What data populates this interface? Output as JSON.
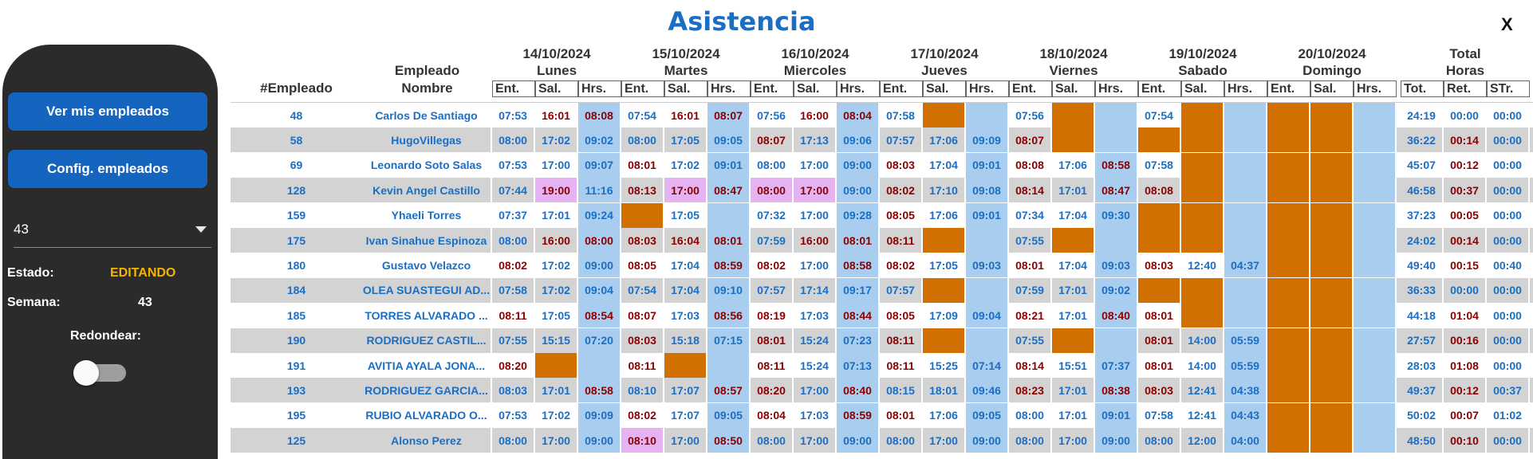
{
  "title": "Asistencia",
  "close_label": "X",
  "colors": {
    "accent": "#1565c0",
    "state": "#f4b400",
    "blue": "#1a6fc4",
    "red": "#8b0000",
    "orange": "#d17000",
    "lightblue": "#a9cdee",
    "pink": "#e6b3f2",
    "time_blue": "#1a6fc4",
    "time_red": "#8b0000"
  },
  "sidebar": {
    "btn_employees": "Ver mis empleados",
    "btn_config": "Config. empleados",
    "select_value": "43",
    "estado_label": "Estado:",
    "estado_value": "EDITANDO",
    "semana_label": "Semana:",
    "semana_value": "43",
    "redondear_label": "Redondear:",
    "redondear_on": false
  },
  "header": {
    "col_emp_num": "#Empleado",
    "col_emp_name_1": "Empleado",
    "col_emp_name_2": "Nombre",
    "days": [
      {
        "date": "14/10/2024",
        "day": "Lunes"
      },
      {
        "date": "15/10/2024",
        "day": "Martes"
      },
      {
        "date": "16/10/2024",
        "day": "Miercoles"
      },
      {
        "date": "17/10/2024",
        "day": "Jueves"
      },
      {
        "date": "18/10/2024",
        "day": "Viernes"
      },
      {
        "date": "19/10/2024",
        "day": "Sabado"
      },
      {
        "date": "20/10/2024",
        "day": "Domingo"
      }
    ],
    "sub_ent": "Ent.",
    "sub_sal": "Sal.",
    "sub_hrs": "Hrs.",
    "total_1": "Total",
    "total_2": "Horas",
    "sub_tot": "Tot.",
    "sub_ret": "Ret.",
    "sub_str": "STr."
  },
  "rows": [
    {
      "num": "48",
      "name": "Carlos De Santiago",
      "cells": [
        [
          "07:53",
          "b"
        ],
        [
          "16:01",
          "r"
        ],
        [
          "08:08",
          "r"
        ],
        [
          "07:54",
          "b"
        ],
        [
          "16:01",
          "r"
        ],
        [
          "08:07",
          "r"
        ],
        [
          "07:56",
          "b"
        ],
        [
          "16:00",
          "r"
        ],
        [
          "08:04",
          "r"
        ],
        [
          "07:58",
          "b"
        ],
        [
          "",
          "O"
        ],
        [
          "",
          "L"
        ],
        [
          "07:56",
          "b"
        ],
        [
          "",
          "O"
        ],
        [
          "",
          "L"
        ],
        [
          "07:54",
          "b"
        ],
        [
          "",
          "O"
        ],
        [
          "",
          "L"
        ],
        [
          "",
          "O"
        ],
        [
          "",
          "O"
        ],
        [
          "",
          "L"
        ]
      ],
      "tot": "24:19",
      "ret": "00:00",
      "str": "00:00"
    },
    {
      "num": "58",
      "name": "HugoVillegas",
      "cells": [
        [
          "08:00",
          "b"
        ],
        [
          "17:02",
          "b"
        ],
        [
          "09:02",
          "b"
        ],
        [
          "08:00",
          "b"
        ],
        [
          "17:05",
          "b"
        ],
        [
          "09:05",
          "b"
        ],
        [
          "08:07",
          "r"
        ],
        [
          "17:13",
          "b"
        ],
        [
          "09:06",
          "b"
        ],
        [
          "07:57",
          "b"
        ],
        [
          "17:06",
          "b"
        ],
        [
          "09:09",
          "b"
        ],
        [
          "08:07",
          "r"
        ],
        [
          "",
          "O"
        ],
        [
          "",
          "L"
        ],
        [
          "",
          "O"
        ],
        [
          "",
          "O"
        ],
        [
          "",
          "L"
        ],
        [
          "",
          "O"
        ],
        [
          "",
          "O"
        ],
        [
          "",
          "L"
        ]
      ],
      "tot": "36:22",
      "ret": "00:14",
      "str": "00:00"
    },
    {
      "num": "69",
      "name": "Leonardo Soto Salas",
      "cells": [
        [
          "07:53",
          "b"
        ],
        [
          "17:00",
          "b"
        ],
        [
          "09:07",
          "b"
        ],
        [
          "08:01",
          "r"
        ],
        [
          "17:02",
          "b"
        ],
        [
          "09:01",
          "b"
        ],
        [
          "08:00",
          "b"
        ],
        [
          "17:00",
          "b"
        ],
        [
          "09:00",
          "b"
        ],
        [
          "08:03",
          "r"
        ],
        [
          "17:04",
          "b"
        ],
        [
          "09:01",
          "b"
        ],
        [
          "08:08",
          "r"
        ],
        [
          "17:06",
          "b"
        ],
        [
          "08:58",
          "r"
        ],
        [
          "07:58",
          "b"
        ],
        [
          "",
          "O"
        ],
        [
          "",
          "L"
        ],
        [
          "",
          "O"
        ],
        [
          "",
          "O"
        ],
        [
          "",
          "L"
        ]
      ],
      "tot": "45:07",
      "ret": "00:12",
      "str": "00:00"
    },
    {
      "num": "128",
      "name": "Kevin Angel Castillo",
      "cells": [
        [
          "07:44",
          "b"
        ],
        [
          "19:00",
          "p"
        ],
        [
          "11:16",
          "b"
        ],
        [
          "08:13",
          "r"
        ],
        [
          "17:00",
          "p"
        ],
        [
          "08:47",
          "r"
        ],
        [
          "08:00",
          "p"
        ],
        [
          "17:00",
          "p"
        ],
        [
          "09:00",
          "b"
        ],
        [
          "08:02",
          "r"
        ],
        [
          "17:10",
          "b"
        ],
        [
          "09:08",
          "b"
        ],
        [
          "08:14",
          "r"
        ],
        [
          "17:01",
          "b"
        ],
        [
          "08:47",
          "r"
        ],
        [
          "08:08",
          "r"
        ],
        [
          "",
          "O"
        ],
        [
          "",
          "L"
        ],
        [
          "",
          "O"
        ],
        [
          "",
          "O"
        ],
        [
          "",
          "L"
        ]
      ],
      "tot": "46:58",
      "ret": "00:37",
      "str": "00:00"
    },
    {
      "num": "159",
      "name": "Yhaeli Torres",
      "cells": [
        [
          "07:37",
          "b"
        ],
        [
          "17:01",
          "b"
        ],
        [
          "09:24",
          "b"
        ],
        [
          "",
          "O"
        ],
        [
          "17:05",
          "b"
        ],
        [
          "",
          "L"
        ],
        [
          "07:32",
          "b"
        ],
        [
          "17:00",
          "b"
        ],
        [
          "09:28",
          "b"
        ],
        [
          "08:05",
          "r"
        ],
        [
          "17:06",
          "b"
        ],
        [
          "09:01",
          "b"
        ],
        [
          "07:34",
          "b"
        ],
        [
          "17:04",
          "b"
        ],
        [
          "09:30",
          "b"
        ],
        [
          "",
          "O"
        ],
        [
          "",
          "O"
        ],
        [
          "",
          "L"
        ],
        [
          "",
          "O"
        ],
        [
          "",
          "O"
        ],
        [
          "",
          "L"
        ]
      ],
      "tot": "37:23",
      "ret": "00:05",
      "str": "00:00"
    },
    {
      "num": "175",
      "name": "Ivan Sinahue Espinoza",
      "cells": [
        [
          "08:00",
          "b"
        ],
        [
          "16:00",
          "r"
        ],
        [
          "08:00",
          "r"
        ],
        [
          "08:03",
          "r"
        ],
        [
          "16:04",
          "r"
        ],
        [
          "08:01",
          "r"
        ],
        [
          "07:59",
          "b"
        ],
        [
          "16:00",
          "r"
        ],
        [
          "08:01",
          "r"
        ],
        [
          "08:11",
          "r"
        ],
        [
          "",
          "O"
        ],
        [
          "",
          "L"
        ],
        [
          "07:55",
          "b"
        ],
        [
          "",
          "O"
        ],
        [
          "",
          "L"
        ],
        [
          "",
          "O"
        ],
        [
          "",
          "O"
        ],
        [
          "",
          "L"
        ],
        [
          "",
          "O"
        ],
        [
          "",
          "O"
        ],
        [
          "",
          "L"
        ]
      ],
      "tot": "24:02",
      "ret": "00:14",
      "str": "00:00"
    },
    {
      "num": "180",
      "name": "Gustavo Velazco",
      "cells": [
        [
          "08:02",
          "r"
        ],
        [
          "17:02",
          "b"
        ],
        [
          "09:00",
          "b"
        ],
        [
          "08:05",
          "r"
        ],
        [
          "17:04",
          "b"
        ],
        [
          "08:59",
          "r"
        ],
        [
          "08:02",
          "r"
        ],
        [
          "17:00",
          "b"
        ],
        [
          "08:58",
          "r"
        ],
        [
          "08:02",
          "r"
        ],
        [
          "17:05",
          "b"
        ],
        [
          "09:03",
          "b"
        ],
        [
          "08:01",
          "r"
        ],
        [
          "17:04",
          "b"
        ],
        [
          "09:03",
          "b"
        ],
        [
          "08:03",
          "r"
        ],
        [
          "12:40",
          "b"
        ],
        [
          "04:37",
          "b"
        ],
        [
          "",
          "O"
        ],
        [
          "",
          "O"
        ],
        [
          "",
          "L"
        ]
      ],
      "tot": "49:40",
      "ret": "00:15",
      "str": "00:40"
    },
    {
      "num": "184",
      "name": "OLEA SUASTEGUI AD...",
      "cells": [
        [
          "07:58",
          "b"
        ],
        [
          "17:02",
          "b"
        ],
        [
          "09:04",
          "b"
        ],
        [
          "07:54",
          "b"
        ],
        [
          "17:04",
          "b"
        ],
        [
          "09:10",
          "b"
        ],
        [
          "07:57",
          "b"
        ],
        [
          "17:14",
          "b"
        ],
        [
          "09:17",
          "b"
        ],
        [
          "07:57",
          "b"
        ],
        [
          "",
          "O"
        ],
        [
          "",
          "L"
        ],
        [
          "07:59",
          "b"
        ],
        [
          "17:01",
          "b"
        ],
        [
          "09:02",
          "b"
        ],
        [
          "",
          "O"
        ],
        [
          "",
          "O"
        ],
        [
          "",
          "L"
        ],
        [
          "",
          "O"
        ],
        [
          "",
          "O"
        ],
        [
          "",
          "L"
        ]
      ],
      "tot": "36:33",
      "ret": "00:00",
      "str": "00:00"
    },
    {
      "num": "185",
      "name": "TORRES ALVARADO ...",
      "cells": [
        [
          "08:11",
          "r"
        ],
        [
          "17:05",
          "b"
        ],
        [
          "08:54",
          "r"
        ],
        [
          "08:07",
          "r"
        ],
        [
          "17:03",
          "b"
        ],
        [
          "08:56",
          "r"
        ],
        [
          "08:19",
          "r"
        ],
        [
          "17:03",
          "b"
        ],
        [
          "08:44",
          "r"
        ],
        [
          "08:05",
          "r"
        ],
        [
          "17:09",
          "b"
        ],
        [
          "09:04",
          "b"
        ],
        [
          "08:21",
          "r"
        ],
        [
          "17:01",
          "b"
        ],
        [
          "08:40",
          "r"
        ],
        [
          "08:01",
          "r"
        ],
        [
          "",
          "O"
        ],
        [
          "",
          "L"
        ],
        [
          "",
          "O"
        ],
        [
          "",
          "O"
        ],
        [
          "",
          "L"
        ]
      ],
      "tot": "44:18",
      "ret": "01:04",
      "str": "00:00"
    },
    {
      "num": "190",
      "name": "RODRIGUEZ CASTIL...",
      "cells": [
        [
          "07:55",
          "b"
        ],
        [
          "15:15",
          "b"
        ],
        [
          "07:20",
          "b"
        ],
        [
          "08:03",
          "r"
        ],
        [
          "15:18",
          "b"
        ],
        [
          "07:15",
          "b"
        ],
        [
          "08:01",
          "r"
        ],
        [
          "15:24",
          "b"
        ],
        [
          "07:23",
          "b"
        ],
        [
          "08:11",
          "r"
        ],
        [
          "",
          "O"
        ],
        [
          "",
          "L"
        ],
        [
          "07:55",
          "b"
        ],
        [
          "",
          "O"
        ],
        [
          "",
          "L"
        ],
        [
          "08:01",
          "r"
        ],
        [
          "14:00",
          "b"
        ],
        [
          "05:59",
          "b"
        ],
        [
          "",
          "O"
        ],
        [
          "",
          "O"
        ],
        [
          "",
          "L"
        ]
      ],
      "tot": "27:57",
      "ret": "00:16",
      "str": "00:00"
    },
    {
      "num": "191",
      "name": "AVITIA AYALA JONA...",
      "cells": [
        [
          "08:20",
          "r"
        ],
        [
          "",
          "O"
        ],
        [
          "",
          "L"
        ],
        [
          "08:11",
          "r"
        ],
        [
          "",
          "O"
        ],
        [
          "",
          "L"
        ],
        [
          "08:11",
          "r"
        ],
        [
          "15:24",
          "b"
        ],
        [
          "07:13",
          "b"
        ],
        [
          "08:11",
          "r"
        ],
        [
          "15:25",
          "b"
        ],
        [
          "07:14",
          "b"
        ],
        [
          "08:14",
          "r"
        ],
        [
          "15:51",
          "b"
        ],
        [
          "07:37",
          "b"
        ],
        [
          "08:01",
          "r"
        ],
        [
          "14:00",
          "b"
        ],
        [
          "05:59",
          "b"
        ],
        [
          "",
          "O"
        ],
        [
          "",
          "O"
        ],
        [
          "",
          "L"
        ]
      ],
      "tot": "28:03",
      "ret": "01:08",
      "str": "00:00"
    },
    {
      "num": "193",
      "name": "RODRIGUEZ GARCIA...",
      "cells": [
        [
          "08:03",
          "b"
        ],
        [
          "17:01",
          "b"
        ],
        [
          "08:58",
          "r"
        ],
        [
          "08:10",
          "b"
        ],
        [
          "17:07",
          "b"
        ],
        [
          "08:57",
          "r"
        ],
        [
          "08:20",
          "r"
        ],
        [
          "17:00",
          "b"
        ],
        [
          "08:40",
          "r"
        ],
        [
          "08:15",
          "b"
        ],
        [
          "18:01",
          "b"
        ],
        [
          "09:46",
          "b"
        ],
        [
          "08:23",
          "r"
        ],
        [
          "17:01",
          "b"
        ],
        [
          "08:38",
          "r"
        ],
        [
          "08:03",
          "r"
        ],
        [
          "12:41",
          "b"
        ],
        [
          "04:38",
          "b"
        ],
        [
          "",
          "O"
        ],
        [
          "",
          "O"
        ],
        [
          "",
          "L"
        ]
      ],
      "tot": "49:37",
      "ret": "00:12",
      "str": "00:37"
    },
    {
      "num": "195",
      "name": "RUBIO ALVARADO O...",
      "cells": [
        [
          "07:53",
          "b"
        ],
        [
          "17:02",
          "b"
        ],
        [
          "09:09",
          "b"
        ],
        [
          "08:02",
          "r"
        ],
        [
          "17:07",
          "b"
        ],
        [
          "09:05",
          "b"
        ],
        [
          "08:04",
          "r"
        ],
        [
          "17:03",
          "b"
        ],
        [
          "08:59",
          "r"
        ],
        [
          "08:01",
          "r"
        ],
        [
          "17:06",
          "b"
        ],
        [
          "09:05",
          "b"
        ],
        [
          "08:00",
          "b"
        ],
        [
          "17:01",
          "b"
        ],
        [
          "09:01",
          "b"
        ],
        [
          "07:58",
          "b"
        ],
        [
          "12:41",
          "b"
        ],
        [
          "04:43",
          "b"
        ],
        [
          "",
          "O"
        ],
        [
          "",
          "O"
        ],
        [
          "",
          "L"
        ]
      ],
      "tot": "50:02",
      "ret": "00:07",
      "str": "01:02"
    },
    {
      "num": "125",
      "name": "Alonso Perez",
      "cells": [
        [
          "08:00",
          "b"
        ],
        [
          "17:00",
          "b"
        ],
        [
          "09:00",
          "b"
        ],
        [
          "08:10",
          "p"
        ],
        [
          "17:00",
          "b"
        ],
        [
          "08:50",
          "r"
        ],
        [
          "08:00",
          "b"
        ],
        [
          "17:00",
          "b"
        ],
        [
          "09:00",
          "b"
        ],
        [
          "08:00",
          "b"
        ],
        [
          "17:00",
          "b"
        ],
        [
          "09:00",
          "b"
        ],
        [
          "08:00",
          "b"
        ],
        [
          "17:00",
          "b"
        ],
        [
          "09:00",
          "b"
        ],
        [
          "08:00",
          "b"
        ],
        [
          "12:00",
          "b"
        ],
        [
          "04:00",
          "b"
        ],
        [
          "",
          "O"
        ],
        [
          "",
          "O"
        ],
        [
          "",
          "L"
        ]
      ],
      "tot": "48:50",
      "ret": "00:10",
      "str": "00:00"
    }
  ]
}
